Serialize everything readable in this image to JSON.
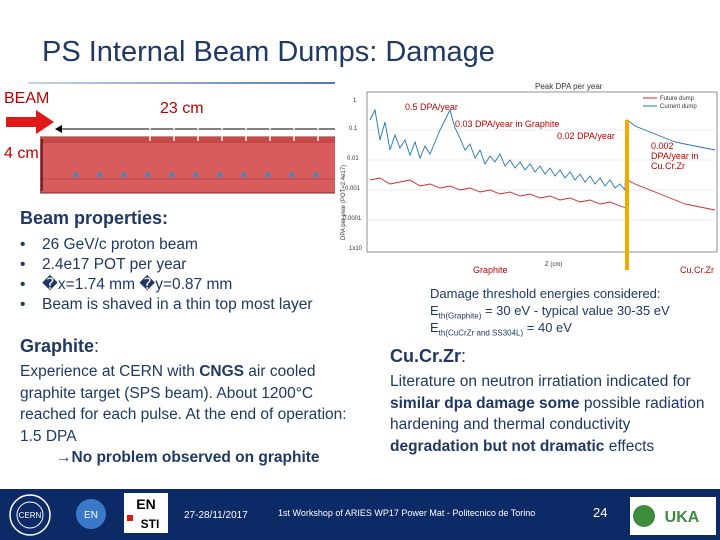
{
  "slide": {
    "title": "PS Internal Beam Dumps: Damage"
  },
  "diagram": {
    "beam_label": "BEAM",
    "length_label": "23 cm",
    "height_label": "4 cm",
    "colors": {
      "dump": "#d95c5c",
      "annotation": "#c00000"
    }
  },
  "beam_properties": {
    "title": "Beam properties:",
    "items": [
      "26 GeV/c proton beam",
      "2.4e17 POT per year",
      "�x=1.74 mm �y=0.87 mm",
      "Beam is shaved in a thin top most layer"
    ]
  },
  "graphite": {
    "title": "Graphite",
    "title_suffix": ":",
    "text_1": "Experience at CERN with ",
    "text_bold_1": "CNGS",
    "text_2": " air cooled graphite target (SPS beam). About 1200°C reached for each pulse. At the end of operation: 1.5 DPA",
    "conclusion_arrow": "→",
    "conclusion": "No problem observed on graphite"
  },
  "chart_data": {
    "type": "line",
    "title": "Peak DPA per year",
    "ylabel": "DPA per year (POT=2.4e17)",
    "xlabel": "Z (cm)",
    "ytick_labels": [
      "1",
      "0.1",
      "0.01",
      "0.001",
      "0.0001",
      "1x10"
    ],
    "legend": [
      "Future dump",
      "Current dump"
    ],
    "series_colors": {
      "future": "#d62728",
      "current": "#1f77b4",
      "marker": "#f2a900"
    },
    "region_labels": [
      "Graphite",
      "Cu.Cr.Zr"
    ],
    "annotations": [
      "0.5 DPA/year",
      "0.03 DPA/year in Graphite",
      "0.02 DPA/year",
      "0.002 DPA/year in Cu.Cr.Zr"
    ]
  },
  "thresholds": {
    "title": "Damage threshold energies considered:",
    "row1_prefix": "E",
    "row1_sub": "th(Graphite)",
    "row1_text": " = 30 eV -  typical value 30-35 eV",
    "row2_prefix": "E",
    "row2_sub": "th(CuCrZr and SS304L)",
    "row2_text": " = 40 eV"
  },
  "cucrzr": {
    "title": "Cu.Cr.Zr",
    "title_suffix": ":",
    "text_1": "Literature on neutron irratiation indicated for ",
    "bold_1": "similar dpa damage some",
    "text_2": " possible radiation hardening and thermal conductivity ",
    "bold_2": "degradation but not dramatic",
    "text_3": " effects"
  },
  "footer": {
    "cern": "CERN",
    "en": "EN",
    "en_sti_top": "EN",
    "en_sti_bottom": "STI",
    "date": "27-28/11/2017",
    "workshop": "1st Workshop of ARIES WP17 Power Mat - Politecnico de Torino",
    "page": "24",
    "euka": "UKA",
    "background": "#0c2a66"
  }
}
